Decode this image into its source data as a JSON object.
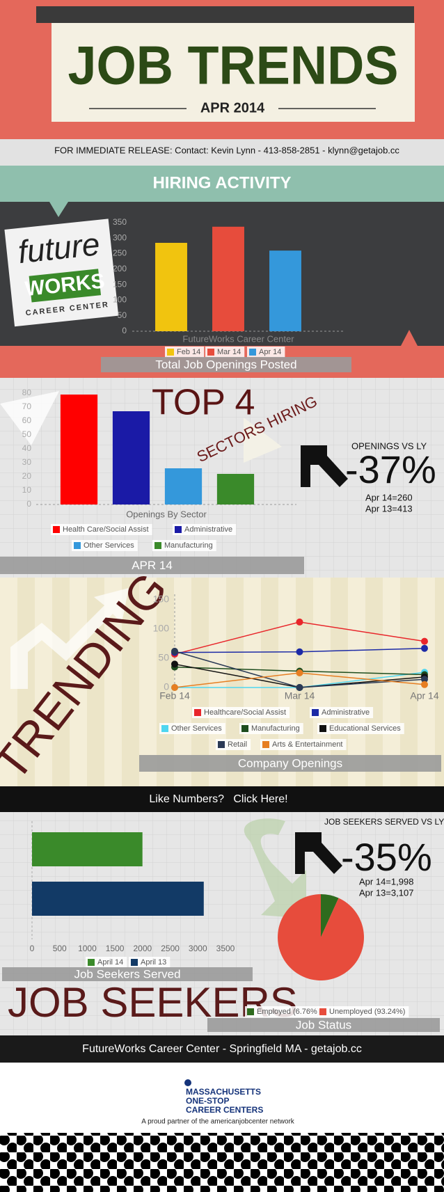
{
  "header": {
    "title": "JOB TRENDS",
    "date": "APR 2014",
    "release": "FOR IMMEDIATE RELEASE: Contact: Kevin Lynn - 413-858-2851 - klynn@getajob.cc"
  },
  "hiring_activity": {
    "heading": "HIRING ACTIVITY",
    "logo": [
      "future",
      "WORKS",
      "CAREER CENTER"
    ]
  },
  "top4": {
    "heading": "TOP 4",
    "subheading": "SECTORS HIRING",
    "comparison": "OPENINGS VS LY",
    "change": "-37%",
    "current": "Apr 14=260",
    "previous": "Apr 13=413"
  },
  "trending": {
    "heading": "TRENDING"
  },
  "cta": "Like Numbers?   Click Here!",
  "job_seekers": {
    "heading": "JOB SEEKERS",
    "comparison": "JOB SEEKERS SERVED VS LY",
    "change": "-35%",
    "current": "Apr 14=1,998",
    "previous": "Apr 13=3,107"
  },
  "footer": {
    "line": "FutureWorks Career Center - Springfield MA - getajob.cc",
    "partner_logo": [
      "MASSACHUSETTS",
      "ONE-STOP",
      "CAREER CENTERS"
    ],
    "tagline": "A proud partner of the americanjobcenter network"
  },
  "chart_data": [
    {
      "type": "bar",
      "title": "Total Job Openings Posted",
      "x_label": "FutureWorks Career Center",
      "categories": [
        "Feb 14",
        "Mar 14",
        "Apr 14"
      ],
      "values": [
        285,
        337,
        260
      ],
      "colors": [
        "#f1c40f",
        "#e74c3c",
        "#3498db"
      ],
      "ylim": [
        0,
        350
      ],
      "yticks": [
        0,
        50,
        100,
        150,
        200,
        250,
        300,
        350
      ],
      "grid": false
    },
    {
      "type": "bar",
      "title": "APR 14",
      "x_label": "Openings By Sector",
      "categories": [
        "Health Care/Social Assist",
        "Administrative",
        "Other Services",
        "Manufacturing"
      ],
      "values": [
        79,
        67,
        26,
        22
      ],
      "colors": [
        "#ff0000",
        "#1a1aa6",
        "#3498db",
        "#3a8a2a"
      ],
      "ylim": [
        0,
        80
      ],
      "yticks": [
        0,
        10,
        20,
        30,
        40,
        50,
        60,
        70,
        80
      ],
      "grid": false
    },
    {
      "type": "line",
      "title": "Company Openings",
      "categories": [
        "Feb 14",
        "Mar 14",
        "Apr 14"
      ],
      "ylim": [
        0,
        150
      ],
      "yticks": [
        0,
        50,
        100,
        150
      ],
      "grid": false,
      "series": [
        {
          "name": "Healthcare/Social Assist",
          "color": "#e8262b",
          "values": [
            57,
            112,
            79
          ]
        },
        {
          "name": "Administrative",
          "color": "#1c2aa6",
          "values": [
            60,
            61,
            67
          ]
        },
        {
          "name": "Other Services",
          "color": "#4fd6f0",
          "values": [
            0,
            0,
            26
          ]
        },
        {
          "name": "Manufacturing",
          "color": "#1e4d1e",
          "values": [
            35,
            28,
            22
          ]
        },
        {
          "name": "Educational Services",
          "color": "#111111",
          "values": [
            40,
            0,
            18
          ]
        },
        {
          "name": "Retail",
          "color": "#2b3a55",
          "values": [
            62,
            0,
            14
          ]
        },
        {
          "name": "Arts & Entertainment",
          "color": "#e67e22",
          "values": [
            0,
            25,
            5
          ]
        }
      ]
    },
    {
      "type": "bar",
      "horizontal": true,
      "title": "Job Seekers Served",
      "categories": [
        "April 14",
        "April 13"
      ],
      "values": [
        1998,
        3107
      ],
      "colors": [
        "#3a8a2a",
        "#123a66"
      ],
      "xlim": [
        0,
        3500
      ],
      "xticks": [
        0,
        500,
        1000,
        1500,
        2000,
        2500,
        3000,
        3500
      ],
      "grid": false
    },
    {
      "type": "pie",
      "title": "Job Status",
      "categories": [
        "Employed (6.76%)",
        "Unemployed (93.24%)"
      ],
      "values": [
        6.76,
        93.24
      ],
      "colors": [
        "#2e6b1e",
        "#e74c3c"
      ]
    }
  ]
}
